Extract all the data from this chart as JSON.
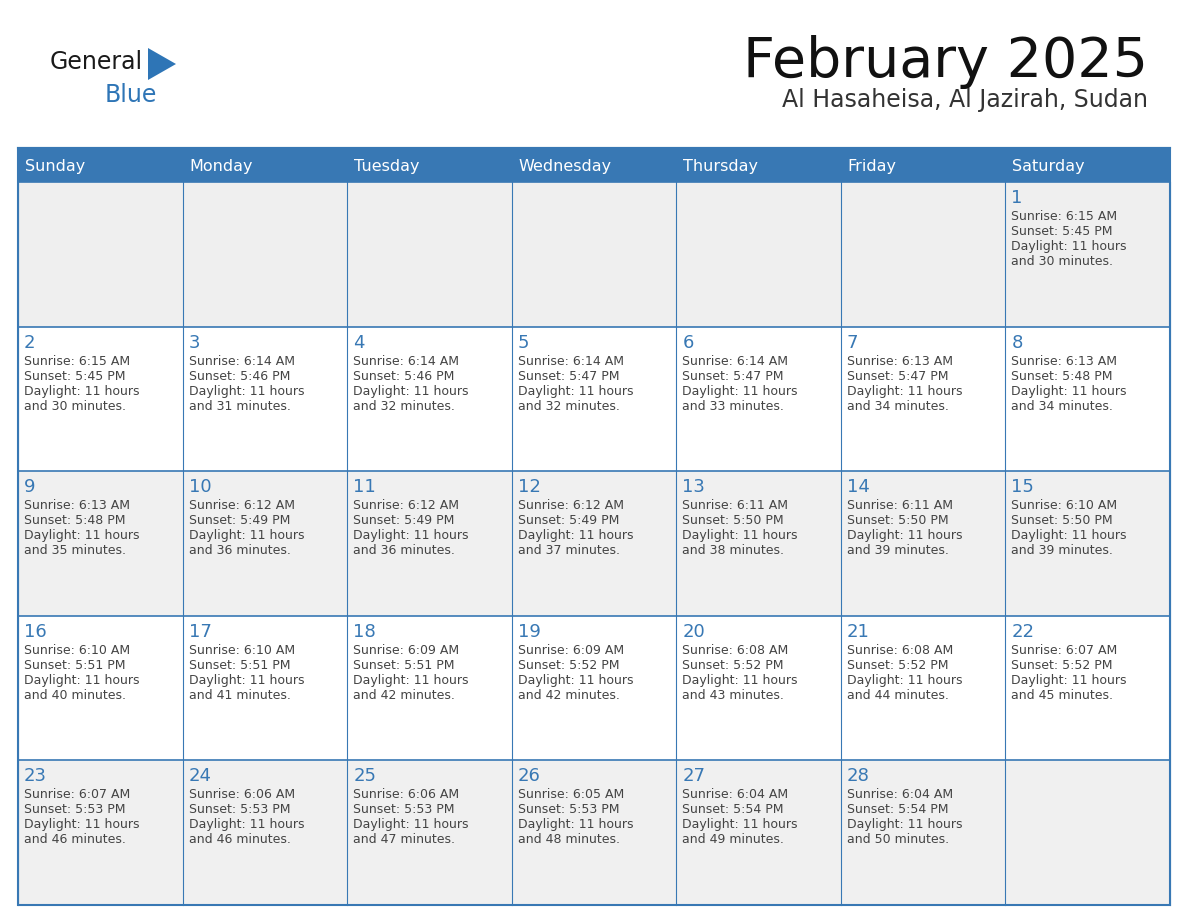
{
  "title": "February 2025",
  "subtitle": "Al Hasaheisa, Al Jazirah, Sudan",
  "days_of_week": [
    "Sunday",
    "Monday",
    "Tuesday",
    "Wednesday",
    "Thursday",
    "Friday",
    "Saturday"
  ],
  "header_bg": "#3878B4",
  "header_text_color": "#FFFFFF",
  "row1_bg": "#EFEFEF",
  "row_odd_bg": "#FFFFFF",
  "row_even_bg": "#F0F0F0",
  "border_color": "#3878B4",
  "day_number_color": "#3878B4",
  "cell_text_color": "#444444",
  "logo_general_color": "#1a1a1a",
  "logo_blue_color": "#2E75B6",
  "logo_tri_color": "#2E75B6",
  "calendar_data": [
    [
      null,
      null,
      null,
      null,
      null,
      null,
      {
        "day": 1,
        "sunrise": "6:15 AM",
        "sunset": "5:45 PM",
        "daylight_hours": 11,
        "daylight_minutes": 30
      }
    ],
    [
      {
        "day": 2,
        "sunrise": "6:15 AM",
        "sunset": "5:45 PM",
        "daylight_hours": 11,
        "daylight_minutes": 30
      },
      {
        "day": 3,
        "sunrise": "6:14 AM",
        "sunset": "5:46 PM",
        "daylight_hours": 11,
        "daylight_minutes": 31
      },
      {
        "day": 4,
        "sunrise": "6:14 AM",
        "sunset": "5:46 PM",
        "daylight_hours": 11,
        "daylight_minutes": 32
      },
      {
        "day": 5,
        "sunrise": "6:14 AM",
        "sunset": "5:47 PM",
        "daylight_hours": 11,
        "daylight_minutes": 32
      },
      {
        "day": 6,
        "sunrise": "6:14 AM",
        "sunset": "5:47 PM",
        "daylight_hours": 11,
        "daylight_minutes": 33
      },
      {
        "day": 7,
        "sunrise": "6:13 AM",
        "sunset": "5:47 PM",
        "daylight_hours": 11,
        "daylight_minutes": 34
      },
      {
        "day": 8,
        "sunrise": "6:13 AM",
        "sunset": "5:48 PM",
        "daylight_hours": 11,
        "daylight_minutes": 34
      }
    ],
    [
      {
        "day": 9,
        "sunrise": "6:13 AM",
        "sunset": "5:48 PM",
        "daylight_hours": 11,
        "daylight_minutes": 35
      },
      {
        "day": 10,
        "sunrise": "6:12 AM",
        "sunset": "5:49 PM",
        "daylight_hours": 11,
        "daylight_minutes": 36
      },
      {
        "day": 11,
        "sunrise": "6:12 AM",
        "sunset": "5:49 PM",
        "daylight_hours": 11,
        "daylight_minutes": 36
      },
      {
        "day": 12,
        "sunrise": "6:12 AM",
        "sunset": "5:49 PM",
        "daylight_hours": 11,
        "daylight_minutes": 37
      },
      {
        "day": 13,
        "sunrise": "6:11 AM",
        "sunset": "5:50 PM",
        "daylight_hours": 11,
        "daylight_minutes": 38
      },
      {
        "day": 14,
        "sunrise": "6:11 AM",
        "sunset": "5:50 PM",
        "daylight_hours": 11,
        "daylight_minutes": 39
      },
      {
        "day": 15,
        "sunrise": "6:10 AM",
        "sunset": "5:50 PM",
        "daylight_hours": 11,
        "daylight_minutes": 39
      }
    ],
    [
      {
        "day": 16,
        "sunrise": "6:10 AM",
        "sunset": "5:51 PM",
        "daylight_hours": 11,
        "daylight_minutes": 40
      },
      {
        "day": 17,
        "sunrise": "6:10 AM",
        "sunset": "5:51 PM",
        "daylight_hours": 11,
        "daylight_minutes": 41
      },
      {
        "day": 18,
        "sunrise": "6:09 AM",
        "sunset": "5:51 PM",
        "daylight_hours": 11,
        "daylight_minutes": 42
      },
      {
        "day": 19,
        "sunrise": "6:09 AM",
        "sunset": "5:52 PM",
        "daylight_hours": 11,
        "daylight_minutes": 42
      },
      {
        "day": 20,
        "sunrise": "6:08 AM",
        "sunset": "5:52 PM",
        "daylight_hours": 11,
        "daylight_minutes": 43
      },
      {
        "day": 21,
        "sunrise": "6:08 AM",
        "sunset": "5:52 PM",
        "daylight_hours": 11,
        "daylight_minutes": 44
      },
      {
        "day": 22,
        "sunrise": "6:07 AM",
        "sunset": "5:52 PM",
        "daylight_hours": 11,
        "daylight_minutes": 45
      }
    ],
    [
      {
        "day": 23,
        "sunrise": "6:07 AM",
        "sunset": "5:53 PM",
        "daylight_hours": 11,
        "daylight_minutes": 46
      },
      {
        "day": 24,
        "sunrise": "6:06 AM",
        "sunset": "5:53 PM",
        "daylight_hours": 11,
        "daylight_minutes": 46
      },
      {
        "day": 25,
        "sunrise": "6:06 AM",
        "sunset": "5:53 PM",
        "daylight_hours": 11,
        "daylight_minutes": 47
      },
      {
        "day": 26,
        "sunrise": "6:05 AM",
        "sunset": "5:53 PM",
        "daylight_hours": 11,
        "daylight_minutes": 48
      },
      {
        "day": 27,
        "sunrise": "6:04 AM",
        "sunset": "5:54 PM",
        "daylight_hours": 11,
        "daylight_minutes": 49
      },
      {
        "day": 28,
        "sunrise": "6:04 AM",
        "sunset": "5:54 PM",
        "daylight_hours": 11,
        "daylight_minutes": 50
      },
      null
    ]
  ]
}
